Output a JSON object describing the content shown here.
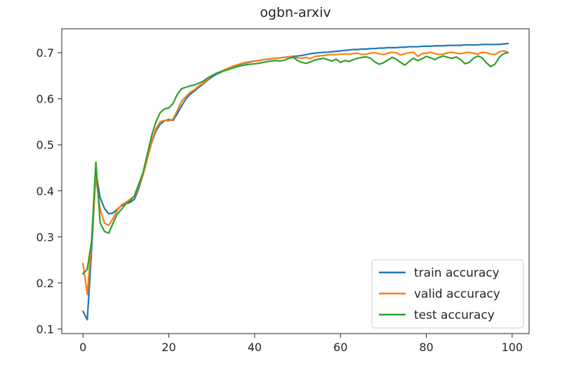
{
  "chart_data": {
    "type": "line",
    "title": "ogbn-arxiv",
    "xlabel": "",
    "ylabel": "",
    "xlim": [
      -4.95,
      103.95
    ],
    "ylim": [
      0.09,
      0.752
    ],
    "xticks": [
      0,
      20,
      40,
      60,
      80,
      100
    ],
    "yticks": [
      0.1,
      0.2,
      0.3,
      0.4,
      0.5,
      0.6,
      0.7
    ],
    "xtick_labels": [
      "0",
      "20",
      "40",
      "60",
      "80",
      "100"
    ],
    "ytick_labels": [
      "0.1",
      "0.2",
      "0.3",
      "0.4",
      "0.5",
      "0.6",
      "0.7"
    ],
    "grid": false,
    "legend_position": "lower-right",
    "series": [
      {
        "name": "train accuracy",
        "color": "#1f77b4",
        "x": [
          0,
          1,
          2,
          3,
          4,
          5,
          6,
          7,
          8,
          9,
          10,
          11,
          12,
          13,
          14,
          15,
          16,
          17,
          18,
          19,
          20,
          21,
          22,
          23,
          24,
          25,
          26,
          27,
          28,
          29,
          30,
          31,
          32,
          33,
          34,
          35,
          36,
          37,
          38,
          39,
          40,
          41,
          42,
          43,
          44,
          45,
          46,
          47,
          48,
          49,
          50,
          51,
          52,
          53,
          54,
          55,
          56,
          57,
          58,
          59,
          60,
          61,
          62,
          63,
          64,
          65,
          66,
          67,
          68,
          69,
          70,
          71,
          72,
          73,
          74,
          75,
          76,
          77,
          78,
          79,
          80,
          81,
          82,
          83,
          84,
          85,
          86,
          87,
          88,
          89,
          90,
          91,
          92,
          93,
          94,
          95,
          96,
          97,
          98,
          99
        ],
        "values": [
          0.138,
          0.12,
          0.27,
          0.44,
          0.385,
          0.362,
          0.35,
          0.352,
          0.36,
          0.368,
          0.372,
          0.375,
          0.382,
          0.405,
          0.435,
          0.47,
          0.505,
          0.53,
          0.545,
          0.552,
          0.555,
          0.553,
          0.568,
          0.585,
          0.6,
          0.61,
          0.617,
          0.625,
          0.632,
          0.64,
          0.647,
          0.653,
          0.657,
          0.662,
          0.666,
          0.669,
          0.673,
          0.676,
          0.678,
          0.68,
          0.682,
          0.683,
          0.685,
          0.686,
          0.687,
          0.688,
          0.689,
          0.69,
          0.691,
          0.692,
          0.693,
          0.694,
          0.696,
          0.698,
          0.699,
          0.7,
          0.701,
          0.701,
          0.702,
          0.703,
          0.704,
          0.705,
          0.706,
          0.707,
          0.707,
          0.708,
          0.708,
          0.709,
          0.709,
          0.71,
          0.71,
          0.711,
          0.711,
          0.711,
          0.712,
          0.712,
          0.713,
          0.713,
          0.713,
          0.714,
          0.714,
          0.714,
          0.715,
          0.715,
          0.715,
          0.716,
          0.716,
          0.716,
          0.716,
          0.717,
          0.717,
          0.717,
          0.717,
          0.718,
          0.718,
          0.718,
          0.718,
          0.718,
          0.719,
          0.72
        ]
      },
      {
        "name": "valid accuracy",
        "color": "#ff7f0e",
        "x": [
          0,
          1,
          2,
          3,
          4,
          5,
          6,
          7,
          8,
          9,
          10,
          11,
          12,
          13,
          14,
          15,
          16,
          17,
          18,
          19,
          20,
          21,
          22,
          23,
          24,
          25,
          26,
          27,
          28,
          29,
          30,
          31,
          32,
          33,
          34,
          35,
          36,
          37,
          38,
          39,
          40,
          41,
          42,
          43,
          44,
          45,
          46,
          47,
          48,
          49,
          50,
          51,
          52,
          53,
          54,
          55,
          56,
          57,
          58,
          59,
          60,
          61,
          62,
          63,
          64,
          65,
          66,
          67,
          68,
          69,
          70,
          71,
          72,
          73,
          74,
          75,
          76,
          77,
          78,
          79,
          80,
          81,
          82,
          83,
          84,
          85,
          86,
          87,
          88,
          89,
          90,
          91,
          92,
          93,
          94,
          95,
          96,
          97,
          98,
          99
        ],
        "values": [
          0.242,
          0.175,
          0.29,
          0.43,
          0.36,
          0.33,
          0.325,
          0.34,
          0.358,
          0.37,
          0.375,
          0.382,
          0.388,
          0.41,
          0.435,
          0.47,
          0.508,
          0.535,
          0.55,
          0.553,
          0.552,
          0.556,
          0.575,
          0.595,
          0.605,
          0.614,
          0.62,
          0.628,
          0.634,
          0.642,
          0.65,
          0.655,
          0.659,
          0.663,
          0.667,
          0.671,
          0.674,
          0.677,
          0.679,
          0.681,
          0.682,
          0.683,
          0.685,
          0.686,
          0.687,
          0.688,
          0.689,
          0.69,
          0.691,
          0.69,
          0.689,
          0.688,
          0.69,
          0.687,
          0.692,
          0.693,
          0.694,
          0.695,
          0.696,
          0.696,
          0.697,
          0.697,
          0.697,
          0.698,
          0.699,
          0.696,
          0.697,
          0.699,
          0.7,
          0.698,
          0.696,
          0.699,
          0.701,
          0.7,
          0.695,
          0.698,
          0.7,
          0.701,
          0.692,
          0.698,
          0.699,
          0.701,
          0.698,
          0.696,
          0.697,
          0.7,
          0.701,
          0.699,
          0.698,
          0.7,
          0.701,
          0.699,
          0.697,
          0.701,
          0.7,
          0.697,
          0.696,
          0.702,
          0.704,
          0.701
        ]
      },
      {
        "name": "test accuracy",
        "color": "#2ca02c",
        "x": [
          0,
          1,
          2,
          3,
          4,
          5,
          6,
          7,
          8,
          9,
          10,
          11,
          12,
          13,
          14,
          15,
          16,
          17,
          18,
          19,
          20,
          21,
          22,
          23,
          24,
          25,
          26,
          27,
          28,
          29,
          30,
          31,
          32,
          33,
          34,
          35,
          36,
          37,
          38,
          39,
          40,
          41,
          42,
          43,
          44,
          45,
          46,
          47,
          48,
          49,
          50,
          51,
          52,
          53,
          54,
          55,
          56,
          57,
          58,
          59,
          60,
          61,
          62,
          63,
          64,
          65,
          66,
          67,
          68,
          69,
          70,
          71,
          72,
          73,
          74,
          75,
          76,
          77,
          78,
          79,
          80,
          81,
          82,
          83,
          84,
          85,
          86,
          87,
          88,
          89,
          90,
          91,
          92,
          93,
          94,
          95,
          96,
          97,
          98,
          99
        ],
        "values": [
          0.22,
          0.23,
          0.29,
          0.462,
          0.33,
          0.312,
          0.308,
          0.33,
          0.35,
          0.36,
          0.372,
          0.378,
          0.39,
          0.415,
          0.44,
          0.48,
          0.52,
          0.55,
          0.57,
          0.578,
          0.58,
          0.59,
          0.61,
          0.622,
          0.625,
          0.628,
          0.63,
          0.634,
          0.638,
          0.645,
          0.65,
          0.655,
          0.658,
          0.661,
          0.664,
          0.667,
          0.67,
          0.672,
          0.674,
          0.675,
          0.676,
          0.677,
          0.679,
          0.681,
          0.682,
          0.683,
          0.682,
          0.684,
          0.688,
          0.69,
          0.683,
          0.679,
          0.677,
          0.68,
          0.684,
          0.686,
          0.688,
          0.685,
          0.682,
          0.686,
          0.679,
          0.683,
          0.681,
          0.685,
          0.688,
          0.69,
          0.691,
          0.688,
          0.68,
          0.675,
          0.678,
          0.684,
          0.69,
          0.686,
          0.679,
          0.673,
          0.681,
          0.688,
          0.683,
          0.687,
          0.692,
          0.689,
          0.685,
          0.69,
          0.693,
          0.69,
          0.688,
          0.691,
          0.685,
          0.676,
          0.679,
          0.688,
          0.693,
          0.689,
          0.678,
          0.67,
          0.675,
          0.69,
          0.698,
          0.7
        ]
      }
    ]
  }
}
